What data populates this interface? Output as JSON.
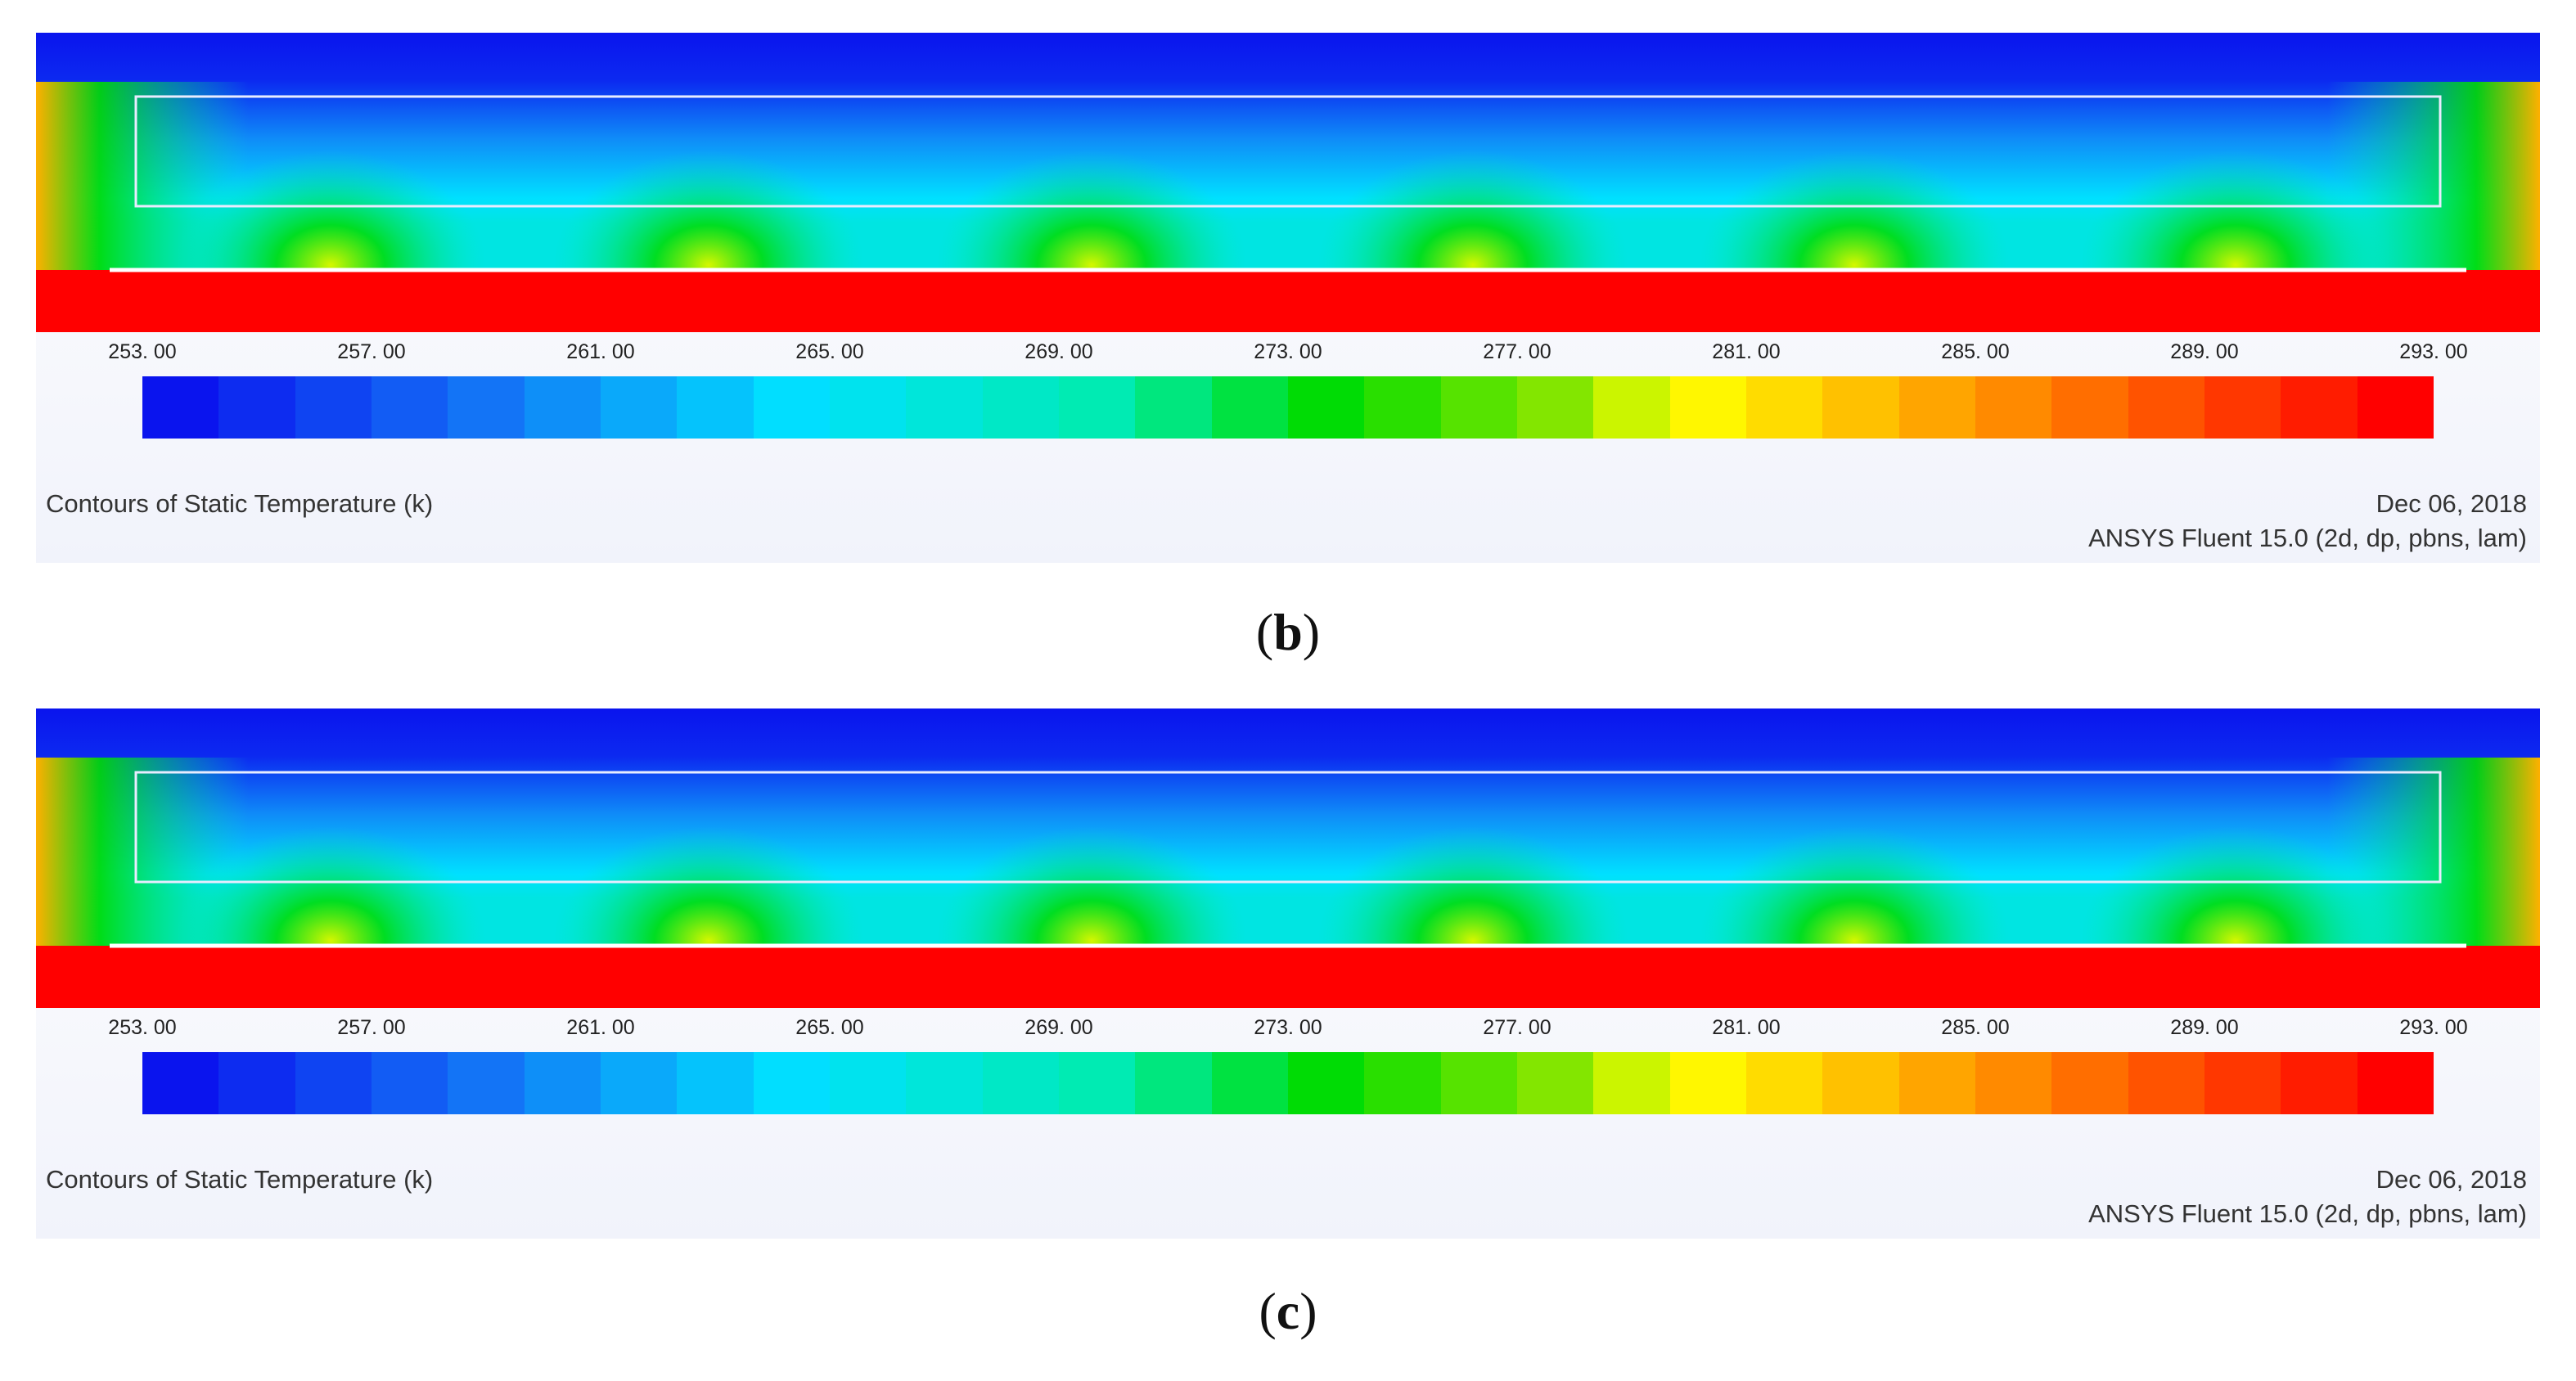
{
  "colors": {
    "cold": "#0a14ee",
    "mid": "#00e5ff",
    "warm": "#00dc00",
    "hot": "#ff0000"
  },
  "chart_data": [
    {
      "type": "heatmap",
      "panel_label": "b",
      "title": "Contours of Static Temperature (k)",
      "date": "Dec 06, 2018",
      "solver": "ANSYS Fluent 15.0 (2d, dp, pbns, lam)",
      "colorbar": {
        "min": 253,
        "max": 293,
        "levels": 30,
        "tick_labels": [
          "253. 00",
          "257. 00",
          "261. 00",
          "265. 00",
          "269. 00",
          "273. 00",
          "277. 00",
          "281. 00",
          "285. 00",
          "289. 00",
          "293. 00"
        ]
      }
    },
    {
      "type": "heatmap",
      "panel_label": "c",
      "title": "Contours of Static Temperature (k)",
      "date": "Dec 06, 2018",
      "solver": "ANSYS Fluent 15.0 (2d, dp, pbns, lam)",
      "colorbar": {
        "min": 253,
        "max": 293,
        "levels": 30,
        "tick_labels": [
          "253. 00",
          "257. 00",
          "261. 00",
          "265. 00",
          "269. 00",
          "273. 00",
          "277. 00",
          "281. 00",
          "285. 00",
          "289. 00",
          "293. 00"
        ]
      }
    }
  ]
}
